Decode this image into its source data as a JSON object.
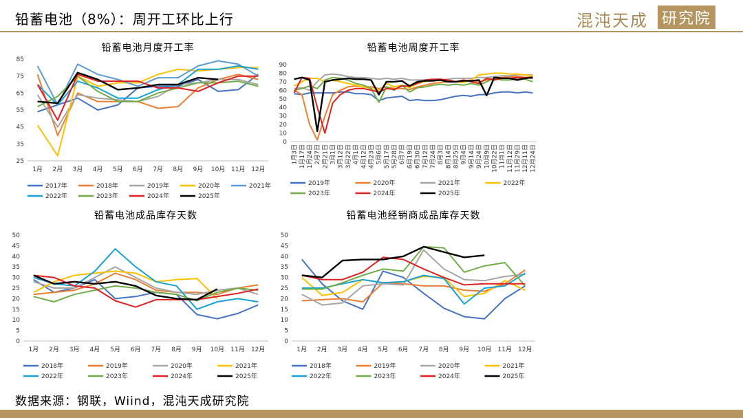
{
  "header": {
    "title": "铅蓄电池（8%）：周开工环比上行",
    "logo_text": "混沌天成",
    "logo_box": "研究院"
  },
  "footer": {
    "source": "数据来源：钢联，Wiind，混沌天成研究院"
  },
  "chart_data": [
    {
      "type": "line",
      "title": "铅蓄电池月度开工率",
      "xlabel": "",
      "ylabel": "",
      "categories": [
        "1月",
        "2月",
        "3月",
        "4月",
        "5月",
        "6月",
        "7月",
        "8月",
        "9月",
        "10月",
        "11月",
        "12月"
      ],
      "ylim": [
        25,
        85
      ],
      "yticks": [
        25,
        35,
        45,
        55,
        65,
        75,
        85
      ],
      "grid": false,
      "legend_position": "bottom",
      "legend_cols": 5,
      "series": [
        {
          "name": "2017年",
          "color": "#4472c4",
          "values": [
            54,
            58,
            62,
            55,
            58,
            68,
            69,
            69,
            73,
            66,
            67,
            76
          ]
        },
        {
          "name": "2018年",
          "color": "#ed7d31",
          "values": [
            76,
            40,
            65,
            60,
            60,
            60,
            56,
            57,
            68,
            73,
            76,
            73
          ]
        },
        {
          "name": "2019年",
          "color": "#a5a5a5",
          "values": [
            64,
            45,
            64,
            62,
            61,
            60,
            63,
            70,
            71,
            73,
            73,
            70
          ]
        },
        {
          "name": "2020年",
          "color": "#ffc000",
          "values": [
            46,
            28,
            75,
            69,
            71,
            71,
            76,
            79,
            78,
            79,
            80,
            80
          ]
        },
        {
          "name": "2021年",
          "color": "#5b9bd5",
          "values": [
            81,
            58,
            82,
            76,
            73,
            69,
            74,
            74,
            81,
            84,
            82,
            75
          ]
        },
        {
          "name": "2022年",
          "color": "#17a2d6",
          "values": [
            70,
            58,
            72,
            68,
            62,
            62,
            67,
            70,
            79,
            79,
            81,
            79
          ]
        },
        {
          "name": "2023年",
          "color": "#70ad47",
          "values": [
            57,
            63,
            75,
            66,
            60,
            60,
            65,
            68,
            71,
            71,
            72,
            69
          ]
        },
        {
          "name": "2024年",
          "color": "#e02020",
          "values": [
            70,
            49,
            76,
            72,
            72,
            72,
            68,
            68,
            66,
            71,
            75,
            75
          ]
        },
        {
          "name": "2025年",
          "color": "#000000",
          "values": [
            60,
            59,
            77,
            73,
            67,
            68,
            70,
            70,
            74,
            73,
            null,
            null
          ]
        }
      ]
    },
    {
      "type": "line",
      "title": "铅蓄电池周度开工率",
      "xlabel": "",
      "ylabel": "",
      "categories": [
        "1月3日",
        "1月17日",
        "1月24日",
        "2月7日",
        "2月21日",
        "3月1日",
        "3月12日",
        "3月22日",
        "4月1日",
        "4月12日",
        "4月23日",
        "5月6日",
        "5月17日",
        "5月28日",
        "6月7日",
        "6月19日",
        "6月30日",
        "7月12日",
        "7月24日",
        "8月3日",
        "8月14日",
        "8月25日",
        "9月4日",
        "9月14日",
        "9月24日",
        "10月9日",
        "10月22日",
        "11月1日",
        "11月12日",
        "11月29日",
        "12月11日",
        "12月24日"
      ],
      "ylim": [
        0,
        90
      ],
      "yticks": [
        0,
        10,
        20,
        30,
        40,
        50,
        60,
        70,
        80,
        90
      ],
      "grid": false,
      "legend_position": "bottom",
      "legend_cols": 4,
      "series": [
        {
          "name": "2019年",
          "color": "#4472c4",
          "values": [
            56,
            55,
            57,
            57,
            57,
            57,
            58,
            58,
            56,
            56,
            55,
            48,
            51,
            52,
            53,
            48,
            49,
            48,
            48,
            49,
            51,
            53,
            54,
            53,
            55,
            55,
            57,
            58,
            58,
            57,
            58,
            57
          ]
        },
        {
          "name": "2020年",
          "color": "#ed7d31",
          "values": [
            60,
            55,
            20,
            2,
            30,
            55,
            60,
            64,
            65,
            64,
            64,
            62,
            64,
            62,
            62,
            61,
            64,
            66,
            68,
            69,
            70,
            70,
            71,
            72,
            70,
            72,
            74,
            75,
            76,
            76,
            75,
            76
          ]
        },
        {
          "name": "2021年",
          "color": "#a5a5a5",
          "values": [
            62,
            63,
            60,
            70,
            78,
            79,
            78,
            76,
            75,
            75,
            74,
            73,
            74,
            73,
            74,
            72,
            72,
            72,
            72,
            72,
            73,
            74,
            74,
            74,
            75,
            75,
            76,
            77,
            77,
            78,
            78,
            78
          ]
        },
        {
          "name": "2022年",
          "color": "#ffc000",
          "values": [
            65,
            70,
            74,
            74,
            70,
            72,
            70,
            68,
            66,
            64,
            62,
            60,
            68,
            64,
            66,
            63,
            68,
            70,
            72,
            72,
            71,
            70,
            69,
            72,
            78,
            79,
            80,
            80,
            79,
            79,
            78,
            77
          ]
        },
        {
          "name": "2023年",
          "color": "#70ad47",
          "values": [
            60,
            62,
            65,
            62,
            72,
            75,
            74,
            72,
            68,
            66,
            62,
            46,
            64,
            60,
            66,
            58,
            63,
            64,
            66,
            67,
            66,
            67,
            66,
            68,
            66,
            70,
            74,
            72,
            72,
            74,
            73,
            70
          ]
        },
        {
          "name": "2024年",
          "color": "#e02020",
          "values": [
            57,
            75,
            74,
            40,
            10,
            45,
            55,
            60,
            62,
            62,
            60,
            58,
            62,
            61,
            65,
            65,
            68,
            72,
            73,
            73,
            72,
            70,
            72,
            70,
            68,
            74,
            72,
            74,
            74,
            75,
            75,
            74
          ]
        },
        {
          "name": "2025年",
          "color": "#000000",
          "values": [
            73,
            75,
            72,
            12,
            70,
            72,
            73,
            74,
            73,
            73,
            72,
            55,
            70,
            70,
            71,
            65,
            70,
            71,
            71,
            72,
            70,
            70,
            71,
            71,
            72,
            54,
            75,
            74,
            74,
            72,
            74,
            75
          ]
        }
      ]
    },
    {
      "type": "line",
      "title": "铅蓄电池成品库存天数",
      "xlabel": "",
      "ylabel": "",
      "categories": [
        "1月",
        "2月",
        "3月",
        "4月",
        "5月",
        "6月",
        "7月",
        "8月",
        "9月",
        "10月",
        "11月",
        "12月"
      ],
      "ylim": [
        0,
        50
      ],
      "yticks": [
        0,
        5,
        10,
        15,
        20,
        25,
        30,
        35,
        40,
        45,
        50
      ],
      "grid": false,
      "legend_position": "bottom",
      "legend_cols": 4,
      "series": [
        {
          "name": "2018年",
          "color": "#4472c4",
          "values": [
            29,
            23,
            25,
            29,
            20,
            21,
            23,
            22,
            12.5,
            10.5,
            13,
            17
          ]
        },
        {
          "name": "2019年",
          "color": "#ed7d31",
          "values": [
            22,
            23,
            24,
            27,
            32,
            29,
            24,
            23,
            23,
            22,
            25,
            26.5
          ]
        },
        {
          "name": "2020年",
          "color": "#a5a5a5",
          "values": [
            28,
            25,
            25,
            30,
            35,
            30,
            25,
            23,
            22,
            24,
            25,
            22
          ]
        },
        {
          "name": "2021年",
          "color": "#ffc000",
          "values": [
            23,
            28,
            31,
            32,
            33,
            32,
            28,
            29,
            29.5,
            20,
            null,
            null
          ]
        },
        {
          "name": "2022年",
          "color": "#17a2d6",
          "values": [
            30,
            27,
            26,
            33,
            43.5,
            35,
            28,
            26,
            15,
            18.5,
            20,
            18.5
          ]
        },
        {
          "name": "2023年",
          "color": "#70ad47",
          "values": [
            21,
            18.5,
            22,
            24,
            26,
            25,
            23,
            22,
            19,
            23,
            25,
            24
          ]
        },
        {
          "name": "2024年",
          "color": "#e02020",
          "values": [
            31,
            30,
            26,
            25,
            19,
            16,
            19.5,
            19.5,
            19.5,
            21,
            22.5,
            24.5
          ]
        },
        {
          "name": "2025年",
          "color": "#000000",
          "values": [
            31,
            27,
            28,
            27,
            28,
            26,
            21.5,
            20,
            19.5,
            24.5,
            null,
            null
          ]
        }
      ]
    },
    {
      "type": "line",
      "title": "铅蓄电池经销商成品库存天数",
      "xlabel": "",
      "ylabel": "",
      "categories": [
        "1月",
        "2月",
        "3月",
        "4月",
        "5月",
        "6月",
        "7月",
        "8月",
        "9月",
        "10月",
        "11月",
        "12月"
      ],
      "ylim": [
        0,
        50
      ],
      "yticks": [
        0,
        5,
        10,
        15,
        20,
        25,
        30,
        35,
        40,
        45,
        50
      ],
      "grid": false,
      "legend_position": "bottom",
      "legend_cols": 4,
      "series": [
        {
          "name": "2018年",
          "color": "#4472c4",
          "values": [
            38.5,
            27,
            19,
            15,
            33,
            30,
            22.5,
            15.5,
            11.5,
            10.5,
            20,
            26
          ]
        },
        {
          "name": "2019年",
          "color": "#ed7d31",
          "values": [
            19,
            19.5,
            20,
            18.5,
            27.5,
            27,
            26,
            26,
            24,
            23.5,
            27,
            33.5
          ]
        },
        {
          "name": "2020年",
          "color": "#a5a5a5",
          "values": [
            22,
            17,
            18,
            26,
            27,
            26.5,
            43,
            34,
            29,
            28.5,
            30.5,
            31.5
          ]
        },
        {
          "name": "2021年",
          "color": "#ffc000",
          "values": [
            30,
            21.5,
            23,
            29,
            27.5,
            28,
            30.5,
            30,
            21,
            22.5,
            28.5,
            24
          ]
        },
        {
          "name": "2022年",
          "color": "#17a2d6",
          "values": [
            25,
            25,
            27,
            29,
            27.5,
            28,
            31,
            29.5,
            17.5,
            25,
            26,
            32
          ]
        },
        {
          "name": "2023年",
          "color": "#70ad47",
          "values": [
            24.5,
            24.5,
            27.5,
            31,
            34,
            33,
            44.5,
            44,
            32.5,
            35.5,
            37,
            26
          ]
        },
        {
          "name": "2024年",
          "color": "#e02020",
          "values": [
            31,
            29,
            29,
            32.5,
            39.5,
            38.5,
            34,
            30,
            26.5,
            27,
            27,
            27
          ]
        },
        {
          "name": "2025年",
          "color": "#000000",
          "values": [
            31,
            30,
            38,
            38.5,
            38.5,
            40,
            44.5,
            42,
            39.5,
            40.5,
            null,
            null
          ]
        }
      ]
    }
  ]
}
